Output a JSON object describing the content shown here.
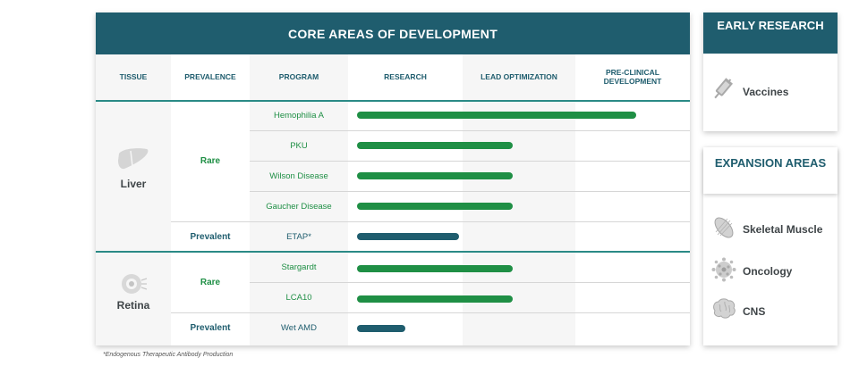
{
  "main": {
    "title": "CORE AREAS OF DEVELOPMENT",
    "columns": {
      "tissue": "TISSUE",
      "prevalence": "PREVALENCE",
      "program": "PROGRAM",
      "research": "RESEARCH",
      "lead_optimization": "LEAD OPTIMIZATION",
      "preclinical": "PRE-CLINICAL DEVELOPMENT"
    },
    "tissues": {
      "liver": "Liver",
      "retina": "Retina"
    },
    "prevalence": {
      "liver_rare": "Rare",
      "liver_prevalent": "Prevalent",
      "retina_rare": "Rare",
      "retina_prevalent": "Prevalent"
    },
    "programs": [
      {
        "name": "Hemophilia A",
        "tissue": "Liver",
        "prevalence": "Rare",
        "progress": 0.93,
        "color": "#1f8f45"
      },
      {
        "name": "PKU",
        "tissue": "Liver",
        "prevalence": "Rare",
        "progress": 0.52,
        "color": "#1f8f45"
      },
      {
        "name": "Wilson Disease",
        "tissue": "Liver",
        "prevalence": "Rare",
        "progress": 0.52,
        "color": "#1f8f45"
      },
      {
        "name": "Gaucher Disease",
        "tissue": "Liver",
        "prevalence": "Rare",
        "progress": 0.52,
        "color": "#1f8f45"
      },
      {
        "name": "ETAP*",
        "tissue": "Liver",
        "prevalence": "Prevalent",
        "progress": 0.34,
        "color": "#1f5d6e"
      },
      {
        "name": "Stargardt",
        "tissue": "Retina",
        "prevalence": "Rare",
        "progress": 0.52,
        "color": "#1f8f45"
      },
      {
        "name": "LCA10",
        "tissue": "Retina",
        "prevalence": "Rare",
        "progress": 0.52,
        "color": "#1f8f45"
      },
      {
        "name": "Wet AMD",
        "tissue": "Retina",
        "prevalence": "Prevalent",
        "progress": 0.16,
        "color": "#1f5d6e"
      }
    ]
  },
  "early_research": {
    "title": "EARLY RESEARCH",
    "items": [
      {
        "label": "Vaccines",
        "icon": "syringe-icon"
      }
    ]
  },
  "expansion": {
    "title": "EXPANSION AREAS",
    "items": [
      {
        "label": "Skeletal Muscle",
        "icon": "muscle-icon"
      },
      {
        "label": "Oncology",
        "icon": "cell-icon"
      },
      {
        "label": "CNS",
        "icon": "brain-icon"
      }
    ]
  },
  "footnote": "*Endogenous Therapeutic Antibody Production",
  "colors": {
    "header_teal": "#1f5d6e",
    "accent_green": "#1f8f45",
    "divider_teal": "#2a8a86"
  }
}
